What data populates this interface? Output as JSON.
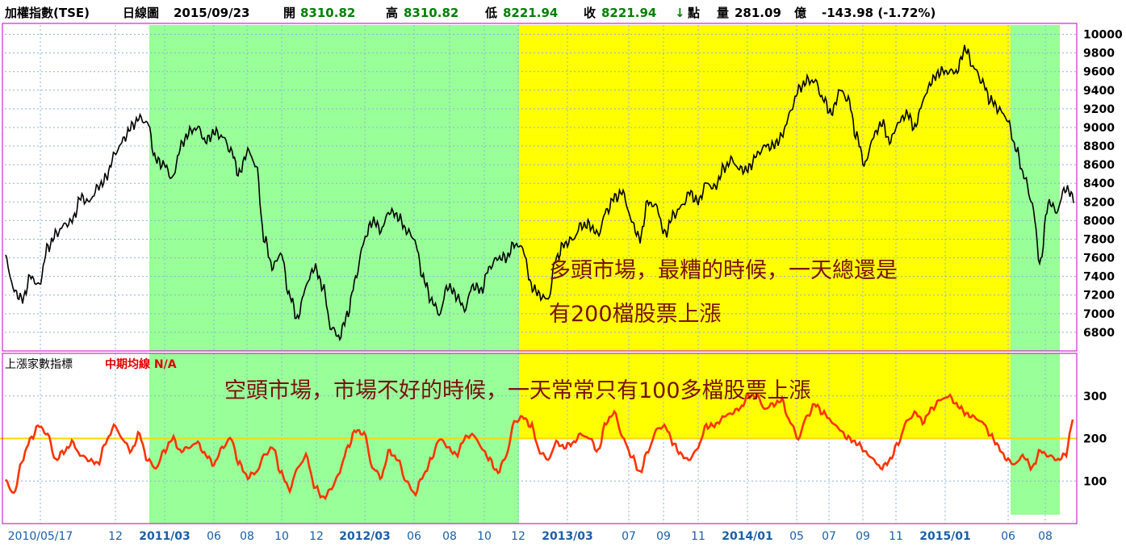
{
  "header": {
    "name": "加權指數(TSE)",
    "chart_kind": "日線圖",
    "date": "2015/09/23",
    "open_label": "開",
    "open": "8310.82",
    "high_label": "高",
    "high": "8310.82",
    "low_label": "低",
    "low": "8221.94",
    "close_label": "收",
    "close": "8221.94",
    "down_arrow": "↓",
    "point_label": "點",
    "volume_label": "量",
    "volume": "281.09",
    "volume_unit": "億",
    "change": "-143.98 (-1.72%)"
  },
  "indicator_panel": {
    "title": "上漲家數指標",
    "ma_label": "中期均線 N/A"
  },
  "annotations": {
    "bull_line1": "多頭市場，最糟的時候，一天總還是",
    "bull_line2": "有200檔股票上漲",
    "bear": "空頭市場，市場不好的時候，一天常常只有100多檔股票上漲"
  },
  "colors": {
    "bear_zone": "#99ff99",
    "bull_zone": "#ffff00",
    "price_line": "#000000",
    "indicator_line": "#ff3300",
    "reference_line": "#ffd700",
    "axis_label": "#1a5fa8"
  },
  "chart_data": [
    {
      "type": "line",
      "title": "加權指數(TSE)",
      "ylim": [
        6600,
        10100
      ],
      "y_ticks": [
        6800,
        7000,
        7200,
        7400,
        7600,
        7800,
        8000,
        8200,
        8400,
        8600,
        8800,
        9000,
        9200,
        9400,
        9600,
        9800,
        10000
      ],
      "x_ticks": [
        "2010/05/17",
        "12",
        "2011/03",
        "06",
        "08",
        "10",
        "12",
        "2012/03",
        "06",
        "08",
        "10",
        "12",
        "2013/03",
        "07",
        "09",
        "11",
        "2014/01",
        "05",
        "07",
        "09",
        "11",
        "2015/01",
        "06",
        "08"
      ],
      "x_major_ticks": [
        "2011/03",
        "2012/03",
        "2013/03",
        "2014/01",
        "2015/01"
      ],
      "shaded_regions": [
        {
          "label": "bear",
          "from": "2011/02",
          "to": "2012/12"
        },
        {
          "label": "bull",
          "from": "2012/12",
          "to": "2015/05"
        },
        {
          "label": "bear",
          "from": "2015/05",
          "to": "2015/08"
        }
      ],
      "series": [
        {
          "name": "加權指數",
          "values": [
            7600,
            7250,
            7150,
            7400,
            7300,
            7700,
            7850,
            7950,
            8000,
            8250,
            8200,
            8350,
            8450,
            8700,
            8850,
            9000,
            9100,
            9050,
            8650,
            8600,
            8450,
            8800,
            8950,
            9000,
            8850,
            8950,
            8900,
            8750,
            8500,
            8750,
            8600,
            7800,
            7500,
            7650,
            7200,
            6950,
            7300,
            7500,
            7300,
            6850,
            6750,
            7000,
            7400,
            7800,
            8000,
            7900,
            8100,
            8050,
            7900,
            7800,
            7400,
            7150,
            7000,
            7300,
            7200,
            7050,
            7300,
            7250,
            7500,
            7600,
            7600,
            7750,
            7700,
            7300,
            7200,
            7150,
            7600,
            7750,
            7800,
            7950,
            7950,
            7850,
            8100,
            8250,
            8300,
            8000,
            7800,
            8200,
            8150,
            7850,
            8050,
            8150,
            8300,
            8200,
            8400,
            8350,
            8550,
            8650,
            8550,
            8550,
            8700,
            8800,
            8800,
            8900,
            9150,
            9400,
            9500,
            9500,
            9300,
            9150,
            9400,
            9300,
            8900,
            8600,
            8900,
            9050,
            8850,
            9050,
            9150,
            9000,
            9300,
            9500,
            9600,
            9600,
            9600,
            9850,
            9650,
            9500,
            9300,
            9200,
            9100,
            8800,
            8500,
            8200,
            7550,
            8200,
            8100,
            8350,
            8250
          ]
        }
      ]
    },
    {
      "type": "line",
      "title": "上漲家數指標",
      "ylim": [
        0,
        400
      ],
      "y_ticks": [
        100,
        200,
        300
      ],
      "reference_value": 200,
      "shaded_regions": [
        {
          "label": "bear",
          "from": "2011/02",
          "to": "2012/12"
        },
        {
          "label": "bull",
          "from": "2012/12",
          "to": "2015/05",
          "ylim": [
            200,
            400
          ]
        },
        {
          "label": "bear",
          "from": "2015/05",
          "to": "2015/08"
        }
      ],
      "series": [
        {
          "name": "上漲家數",
          "values": [
            100,
            70,
            150,
            200,
            230,
            210,
            150,
            170,
            190,
            160,
            150,
            140,
            190,
            230,
            200,
            170,
            210,
            150,
            130,
            170,
            200,
            170,
            180,
            190,
            160,
            140,
            180,
            200,
            140,
            110,
            120,
            160,
            180,
            120,
            80,
            130,
            160,
            90,
            60,
            80,
            120,
            180,
            220,
            210,
            130,
            110,
            170,
            150,
            100,
            70,
            110,
            150,
            200,
            180,
            160,
            200,
            210,
            180,
            150,
            120,
            160,
            240,
            250,
            230,
            170,
            150,
            190,
            180,
            190,
            210,
            200,
            170,
            240,
            260,
            200,
            160,
            120,
            170,
            220,
            230,
            190,
            160,
            150,
            180,
            230,
            230,
            250,
            260,
            270,
            300,
            300,
            270,
            280,
            290,
            240,
            200,
            250,
            280,
            260,
            240,
            220,
            200,
            190,
            170,
            150,
            130,
            150,
            190,
            240,
            260,
            240,
            270,
            290,
            300,
            280,
            260,
            250,
            240,
            210,
            180,
            150,
            140,
            160,
            130,
            170,
            160,
            150,
            160,
            250
          ]
        }
      ]
    }
  ]
}
